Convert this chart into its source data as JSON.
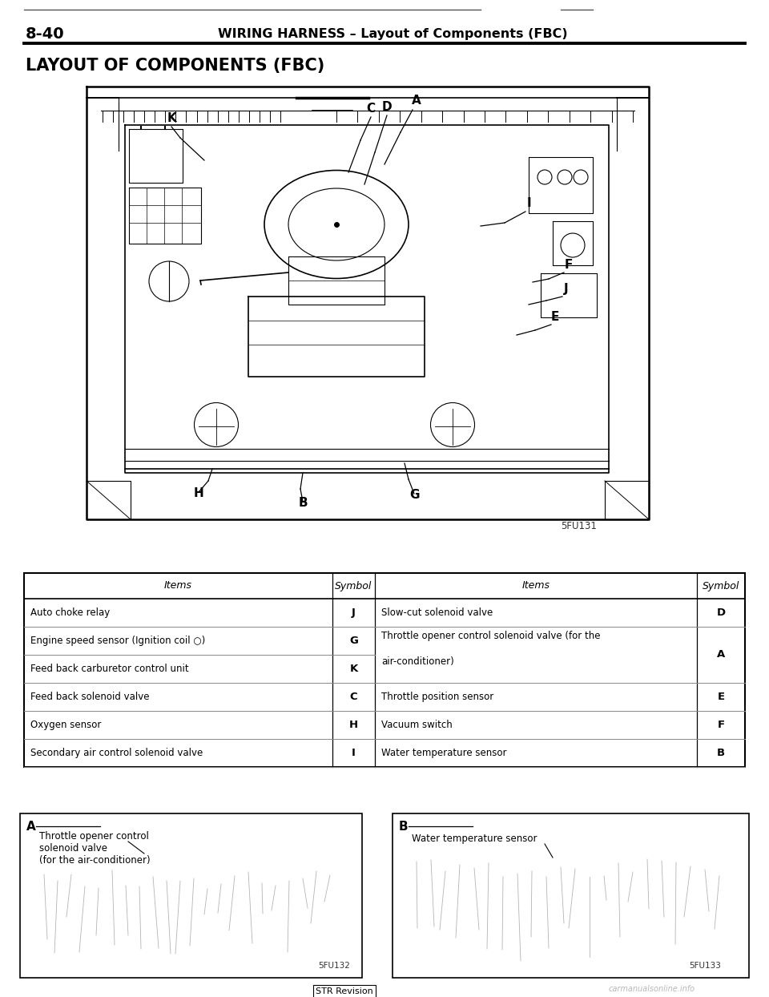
{
  "page_number": "8-40",
  "header_title": "WIRING HARNESS – Layout of Components (FBC)",
  "section_title": "LAYOUT OF COMPONENTS (FBC)",
  "figure_code_main": "5FU131",
  "figure_code_a": "5FU132",
  "figure_code_b": "5FU133",
  "table_rows_left": [
    [
      "Auto choke relay",
      "J"
    ],
    [
      "Engine speed sensor (Ignition coil ○)",
      "G"
    ],
    [
      "Feed back carburetor control unit",
      "K"
    ],
    [
      "Feed back solenoid valve",
      "C"
    ],
    [
      "Oxygen sensor",
      "H"
    ],
    [
      "Secondary air control solenoid valve",
      "I"
    ]
  ],
  "table_rows_right": [
    [
      "Slow-cut solenoid valve",
      "D"
    ],
    [
      "Throttle opener control solenoid valve (for the",
      "A"
    ],
    [
      "air-conditioner)",
      ""
    ],
    [
      "Throttle position sensor",
      "E"
    ],
    [
      "Vacuum switch",
      "F"
    ],
    [
      "Water temperature sensor",
      "B"
    ]
  ],
  "label_a_line1": "Throttle opener control",
  "label_a_line2": "solenoid valve",
  "label_a_line3": "(for the air-conditioner)",
  "label_b_line1": "Water temperature sensor",
  "watermark": "carmanualsonline.info",
  "bg_color": "#ffffff",
  "text_color": "#000000"
}
